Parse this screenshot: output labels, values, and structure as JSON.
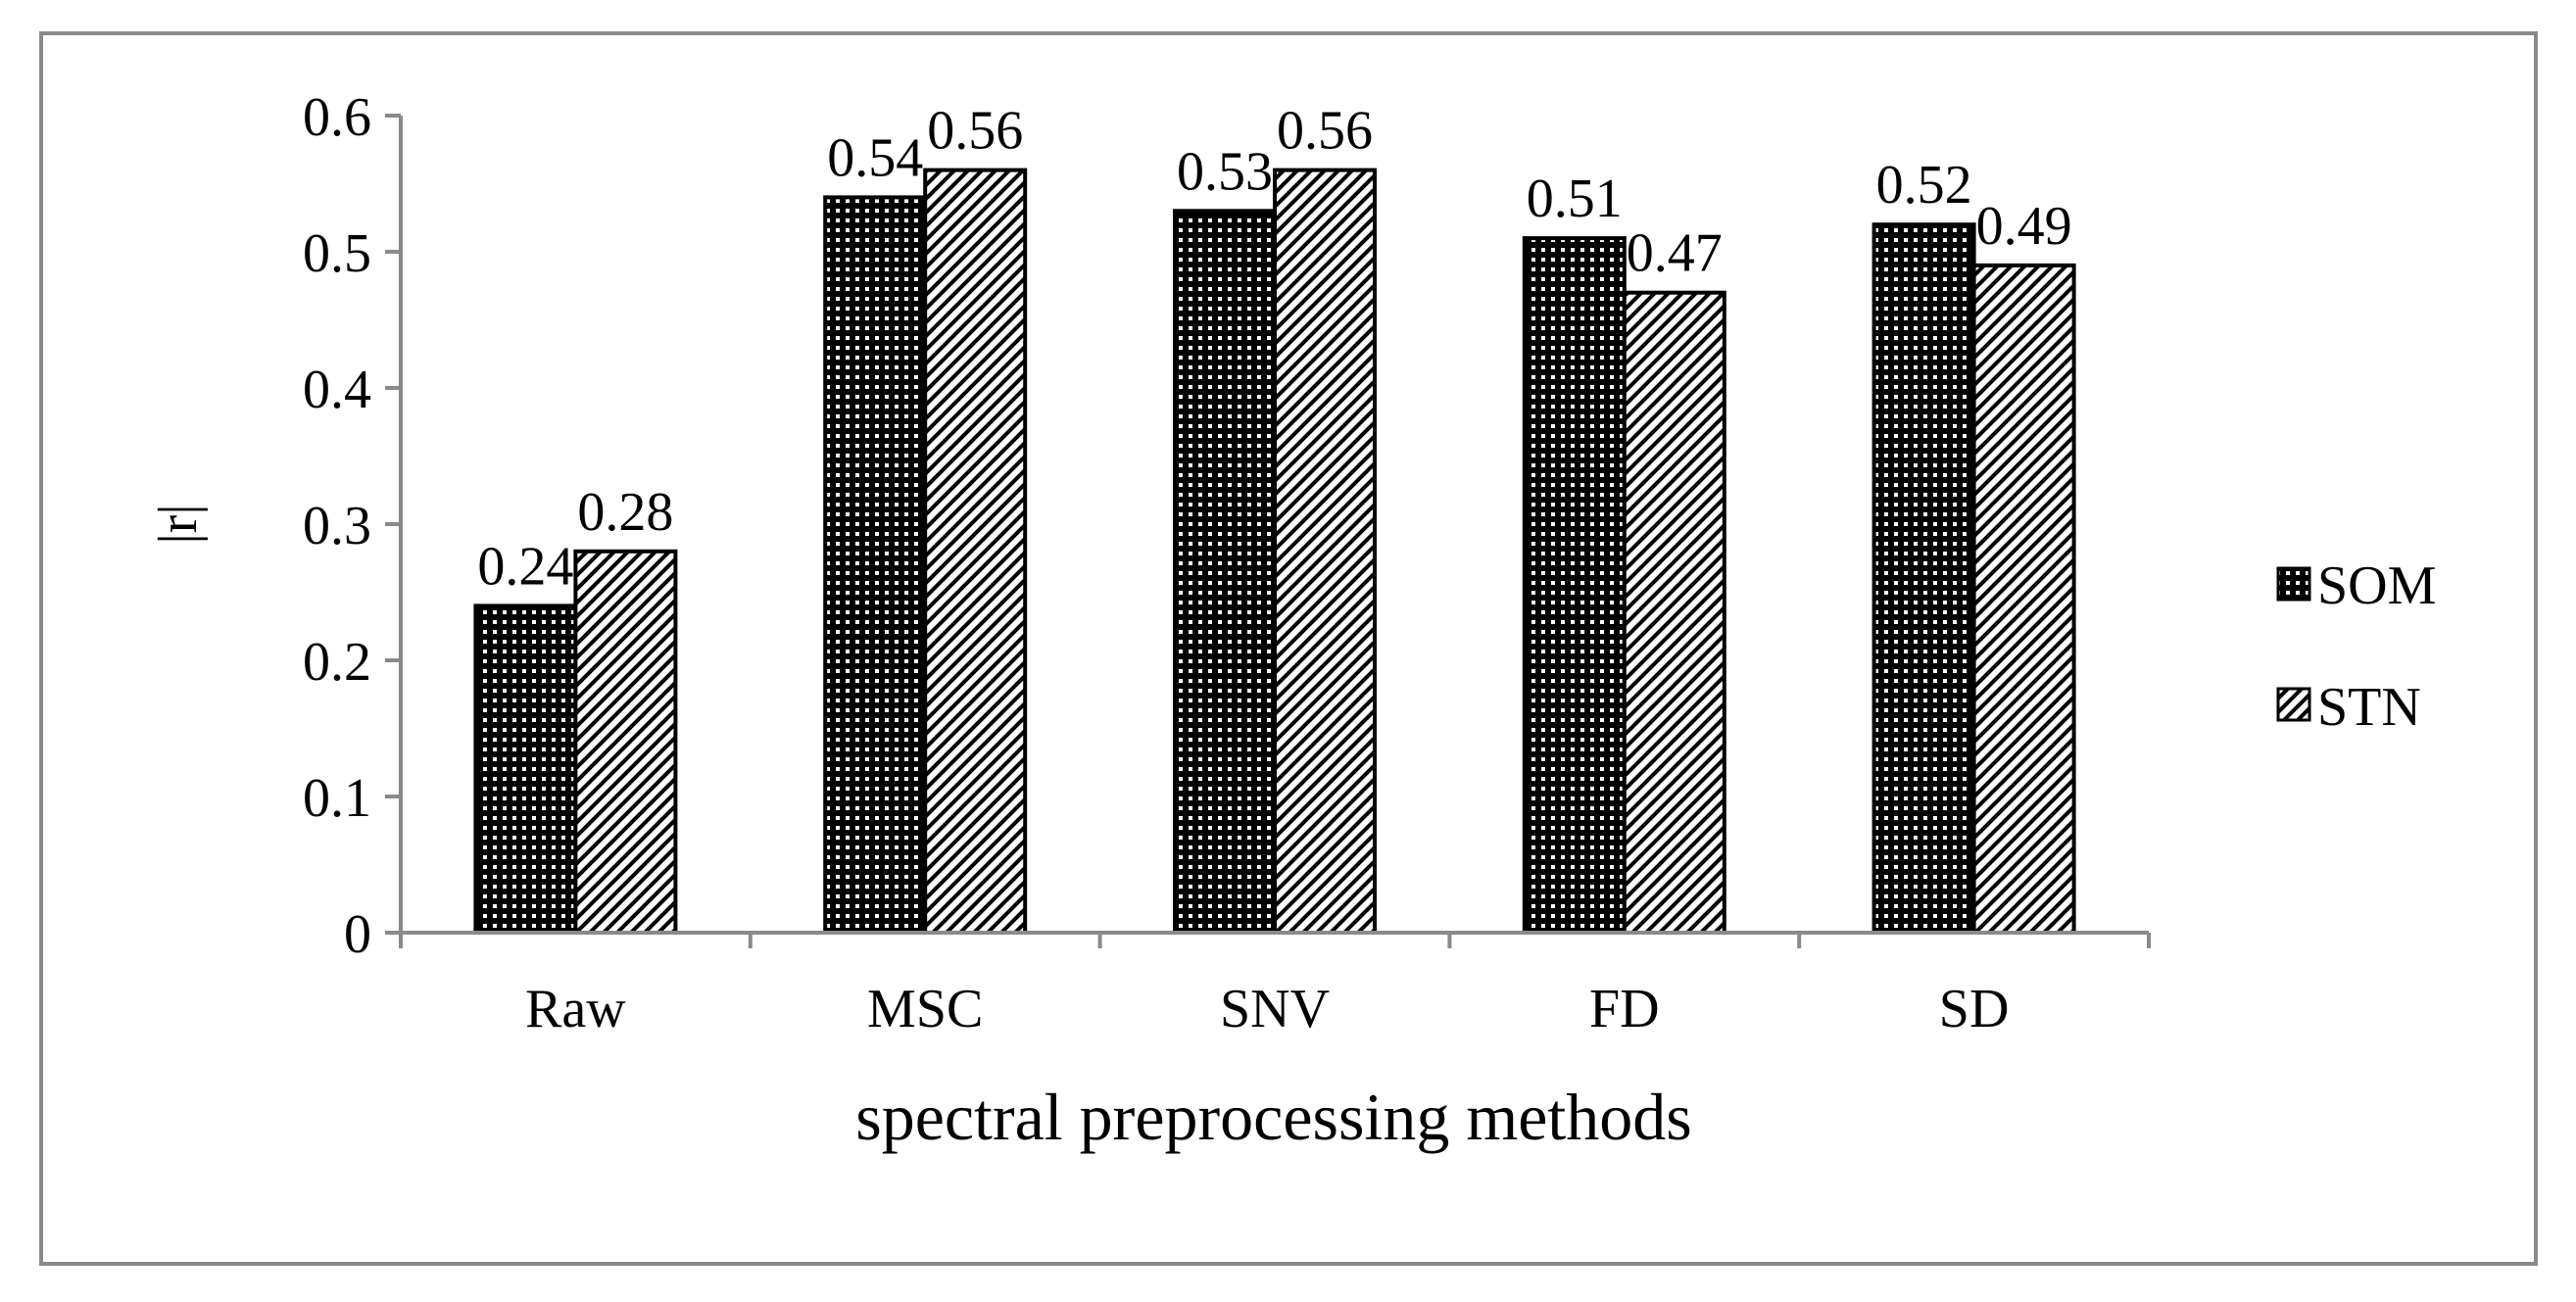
{
  "chart_data": {
    "type": "bar",
    "title": "",
    "xlabel": "spectral preprocessing methods",
    "ylabel": "|r|",
    "categories": [
      "Raw",
      "MSC",
      "SNV",
      "FD",
      "SD"
    ],
    "series": [
      {
        "name": "SOM",
        "values": [
          0.24,
          0.54,
          0.53,
          0.51,
          0.52
        ],
        "labels": [
          "0.24",
          "0.54",
          "0.53",
          "0.51",
          "0.52"
        ],
        "pattern": "dots"
      },
      {
        "name": "STN",
        "values": [
          0.28,
          0.56,
          0.56,
          0.47,
          0.49
        ],
        "labels": [
          "0.28",
          "0.56",
          "0.56",
          "0.47",
          "0.49"
        ],
        "pattern": "diagonal-stripes"
      }
    ],
    "ylim": [
      0,
      0.6
    ],
    "yticks": [
      0,
      0.1,
      0.2,
      0.3,
      0.4,
      0.5,
      0.6
    ],
    "ytick_labels": [
      "0",
      "0.1",
      "0.2",
      "0.3",
      "0.4",
      "0.5",
      "0.6"
    ],
    "grid": false,
    "legend": "right",
    "data_labels": true
  }
}
